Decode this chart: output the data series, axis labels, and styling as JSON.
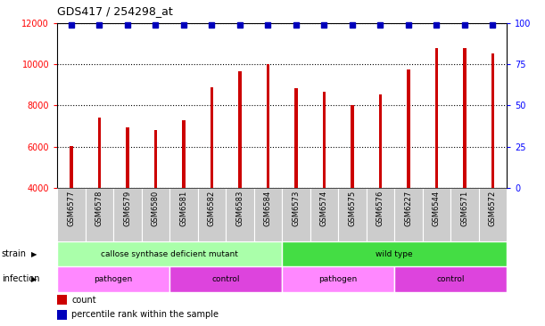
{
  "title": "GDS417 / 254298_at",
  "samples": [
    "GSM6577",
    "GSM6578",
    "GSM6579",
    "GSM6580",
    "GSM6581",
    "GSM6582",
    "GSM6583",
    "GSM6584",
    "GSM6573",
    "GSM6574",
    "GSM6575",
    "GSM6576",
    "GSM6227",
    "GSM6544",
    "GSM6571",
    "GSM6572"
  ],
  "counts": [
    6020,
    7420,
    6950,
    6820,
    7280,
    8900,
    9650,
    10020,
    8820,
    8680,
    8020,
    8530,
    9730,
    10800,
    10800,
    10520
  ],
  "bar_color": "#cc0000",
  "percentile_color": "#0000bb",
  "ylim_left": [
    4000,
    12000
  ],
  "ylim_right": [
    0,
    100
  ],
  "yticks_left": [
    4000,
    6000,
    8000,
    10000,
    12000
  ],
  "yticks_right": [
    0,
    25,
    50,
    75,
    100
  ],
  "strain_groups": [
    {
      "label": "callose synthase deficient mutant",
      "start": 0,
      "end": 8,
      "color": "#aaffaa"
    },
    {
      "label": "wild type",
      "start": 8,
      "end": 16,
      "color": "#44dd44"
    }
  ],
  "infection_groups": [
    {
      "label": "pathogen",
      "start": 0,
      "end": 4,
      "color": "#ff88ff"
    },
    {
      "label": "control",
      "start": 4,
      "end": 8,
      "color": "#dd44dd"
    },
    {
      "label": "pathogen",
      "start": 8,
      "end": 12,
      "color": "#ff88ff"
    },
    {
      "label": "control",
      "start": 12,
      "end": 16,
      "color": "#dd44dd"
    }
  ],
  "legend_items": [
    {
      "label": "count",
      "color": "#cc0000"
    },
    {
      "label": "percentile rank within the sample",
      "color": "#0000bb"
    }
  ],
  "background_color": "#ffffff",
  "tick_area_bg": "#cccccc",
  "bar_width": 0.12,
  "fig_width": 6.11,
  "fig_height": 3.66,
  "dpi": 100
}
